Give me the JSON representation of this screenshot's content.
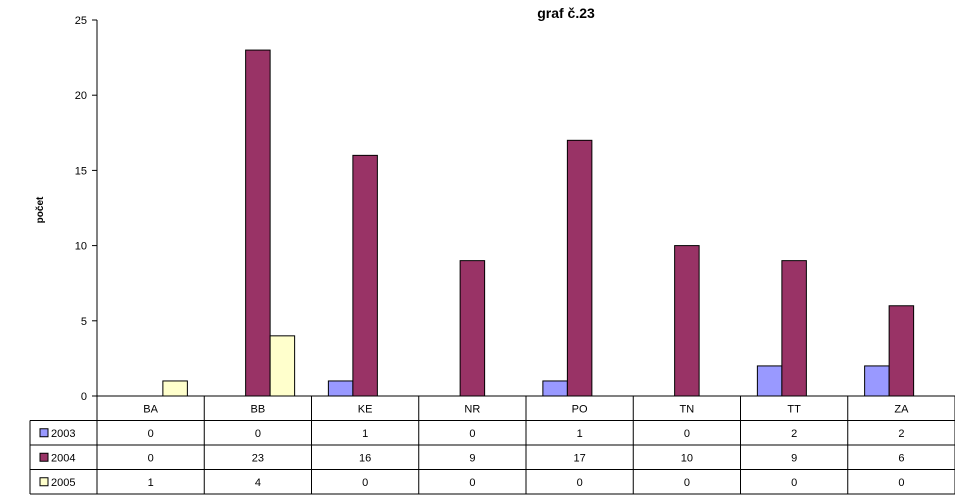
{
  "chart_data": {
    "type": "bar",
    "title": "graf č.23",
    "ylabel": "počet",
    "xlabel": "",
    "ylim": [
      0,
      25
    ],
    "yticks": [
      0,
      5,
      10,
      15,
      20,
      25
    ],
    "grid": false,
    "legend": "data-table",
    "categories": [
      "BA",
      "BB",
      "KE",
      "NR",
      "PO",
      "TN",
      "TT",
      "ZA"
    ],
    "series": [
      {
        "name": "2003",
        "color": "#9999ff",
        "values": [
          0,
          0,
          1,
          0,
          1,
          0,
          2,
          2
        ]
      },
      {
        "name": "2004",
        "color": "#993366",
        "values": [
          0,
          23,
          16,
          9,
          17,
          10,
          9,
          6
        ]
      },
      {
        "name": "2005",
        "color": "#ffffcc",
        "values": [
          1,
          4,
          0,
          0,
          0,
          0,
          0,
          0
        ]
      }
    ]
  }
}
